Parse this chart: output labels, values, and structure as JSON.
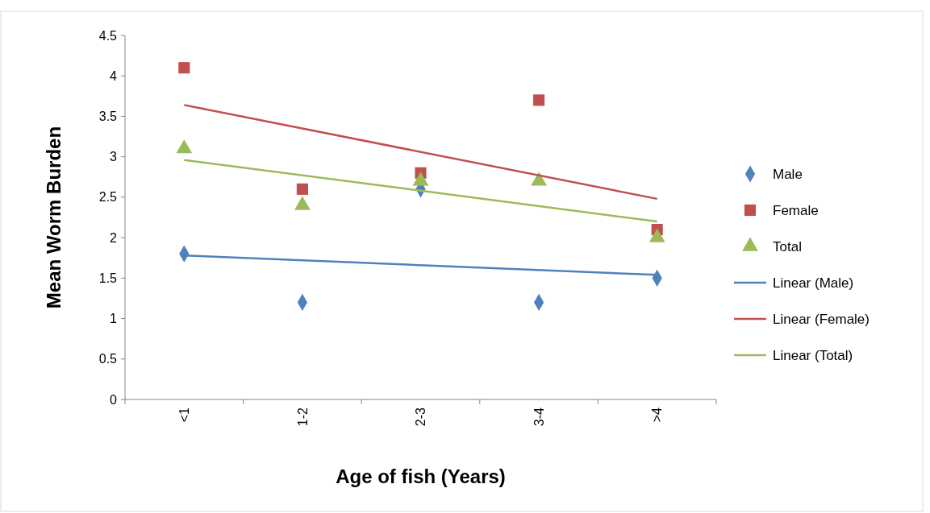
{
  "chart_data": {
    "type": "scatter",
    "xlabel": "Age of fish (Years)",
    "ylabel": "Mean Worm Burden",
    "categories": [
      "<1",
      "1-2",
      "2-3",
      "3-4",
      ">4"
    ],
    "ylim": [
      0,
      4.5
    ],
    "yticks": [
      0,
      0.5,
      1,
      1.5,
      2,
      2.5,
      3,
      3.5,
      4,
      4.5
    ],
    "grid": false,
    "legend": "right",
    "series": [
      {
        "name": "Male",
        "color": "#4f81bd",
        "marker": "diamond",
        "values": [
          1.8,
          1.2,
          2.6,
          1.2,
          1.5
        ]
      },
      {
        "name": "Female",
        "color": "#c0504d",
        "marker": "square",
        "values": [
          4.1,
          2.6,
          2.8,
          3.7,
          2.1
        ]
      },
      {
        "name": "Total",
        "color": "#9bbb59",
        "marker": "triangle",
        "values": [
          3.1,
          2.4,
          2.7,
          2.7,
          2.0
        ]
      },
      {
        "name": "Linear (Male)",
        "type": "line",
        "color": "#4f81bd",
        "marker": "none",
        "x": [
          "<1",
          ">4"
        ],
        "values": [
          1.78,
          1.54
        ]
      },
      {
        "name": "Linear (Female)",
        "type": "line",
        "color": "#c0504d",
        "marker": "none",
        "x": [
          "<1",
          ">4"
        ],
        "values": [
          3.64,
          2.48
        ]
      },
      {
        "name": "Linear (Total)",
        "type": "line",
        "color": "#9bbb59",
        "marker": "none",
        "x": [
          "<1",
          ">4"
        ],
        "values": [
          2.96,
          2.2
        ]
      }
    ]
  }
}
